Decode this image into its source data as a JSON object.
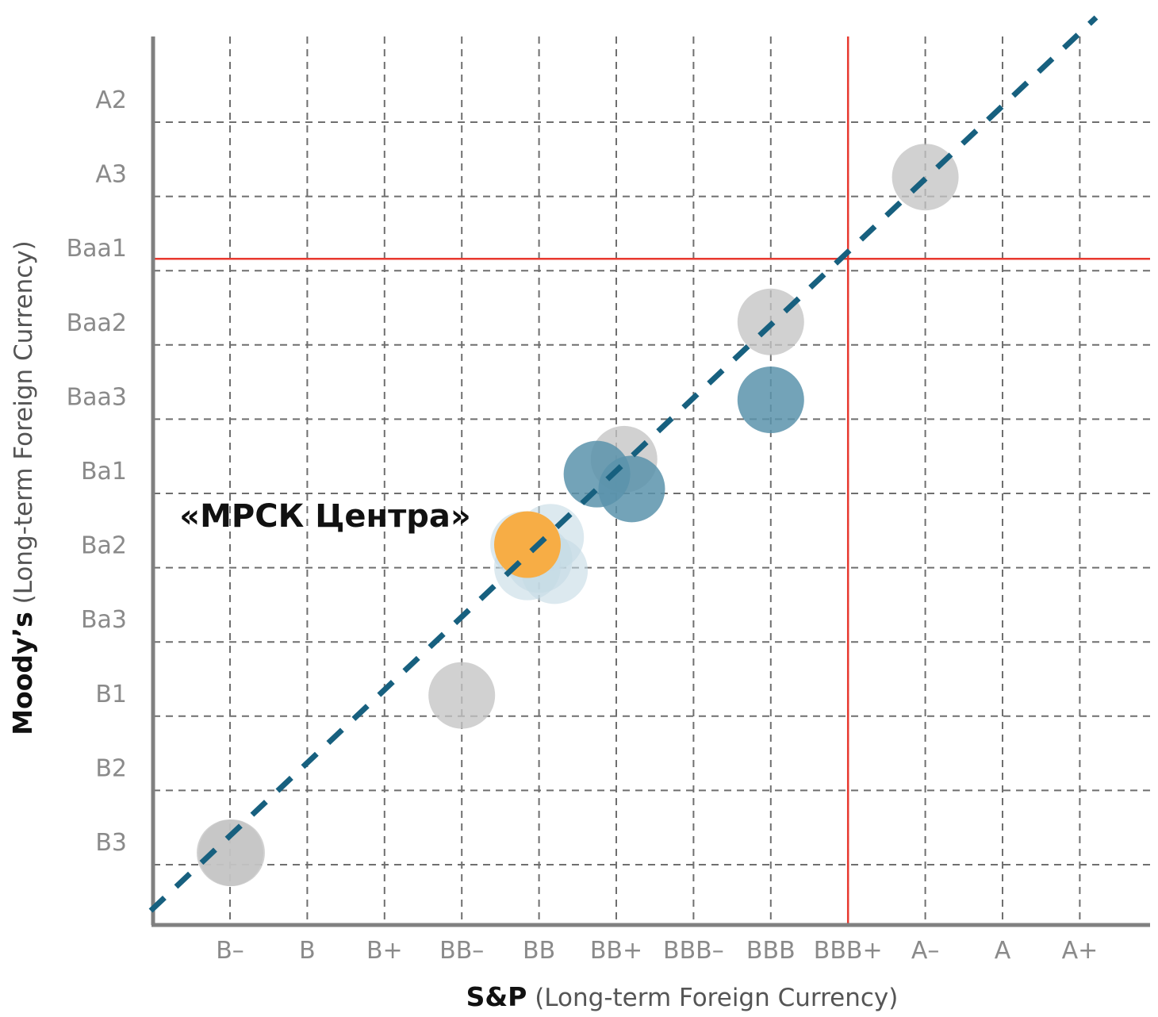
{
  "chart_data": {
    "type": "scatter",
    "xlabel_bold": "S&P",
    "xlabel_rest": " (Long-term Foreign Currency)",
    "ylabel_bold": "Moody’s",
    "ylabel_rest": " (Long-term Foreign Currency)",
    "x_categories": [
      "B–",
      "B",
      "B+",
      "BB–",
      "BB",
      "BB+",
      "BBB–",
      "BBB",
      "BBB+",
      "A–",
      "A",
      "A+"
    ],
    "y_categories": [
      "B3",
      "B2",
      "B1",
      "Ba3",
      "Ba2",
      "Ba1",
      "Baa3",
      "Baa2",
      "Baa1",
      "A3",
      "A2"
    ],
    "grid": true,
    "diagonal_line": true,
    "investment_grade_threshold": {
      "x": "BBB+",
      "y": "Baa1"
    },
    "annotation": "«МРСК Центра»",
    "colors": {
      "peer": "#c4c4c4",
      "highlight_group": "#5a93ab",
      "light_group": "#c5dbe5",
      "target": "#f7ad45",
      "threshold": "#e8392f",
      "diagonal": "#17607f"
    },
    "series": [
      {
        "group": "peer",
        "points": [
          {
            "x": 1.0,
            "y": 1.0
          },
          {
            "x": 1.02,
            "y": 1.0
          },
          {
            "x": 4.0,
            "y": 3.12
          },
          {
            "x": 6.1,
            "y": 6.3
          },
          {
            "x": 8.0,
            "y": 8.15
          },
          {
            "x": 10.0,
            "y": 10.1
          }
        ]
      },
      {
        "group": "highlight_group",
        "points": [
          {
            "x": 5.75,
            "y": 6.1
          },
          {
            "x": 6.2,
            "y": 5.9
          },
          {
            "x": 8.0,
            "y": 7.1
          }
        ]
      },
      {
        "group": "light_group",
        "points": [
          {
            "x": 4.8,
            "y": 5.15
          },
          {
            "x": 5.15,
            "y": 5.25
          },
          {
            "x": 5.2,
            "y": 4.8
          },
          {
            "x": 5.0,
            "y": 4.95
          },
          {
            "x": 4.85,
            "y": 4.85
          }
        ]
      },
      {
        "group": "target",
        "points": [
          {
            "x": 4.85,
            "y": 5.15
          }
        ]
      }
    ]
  }
}
